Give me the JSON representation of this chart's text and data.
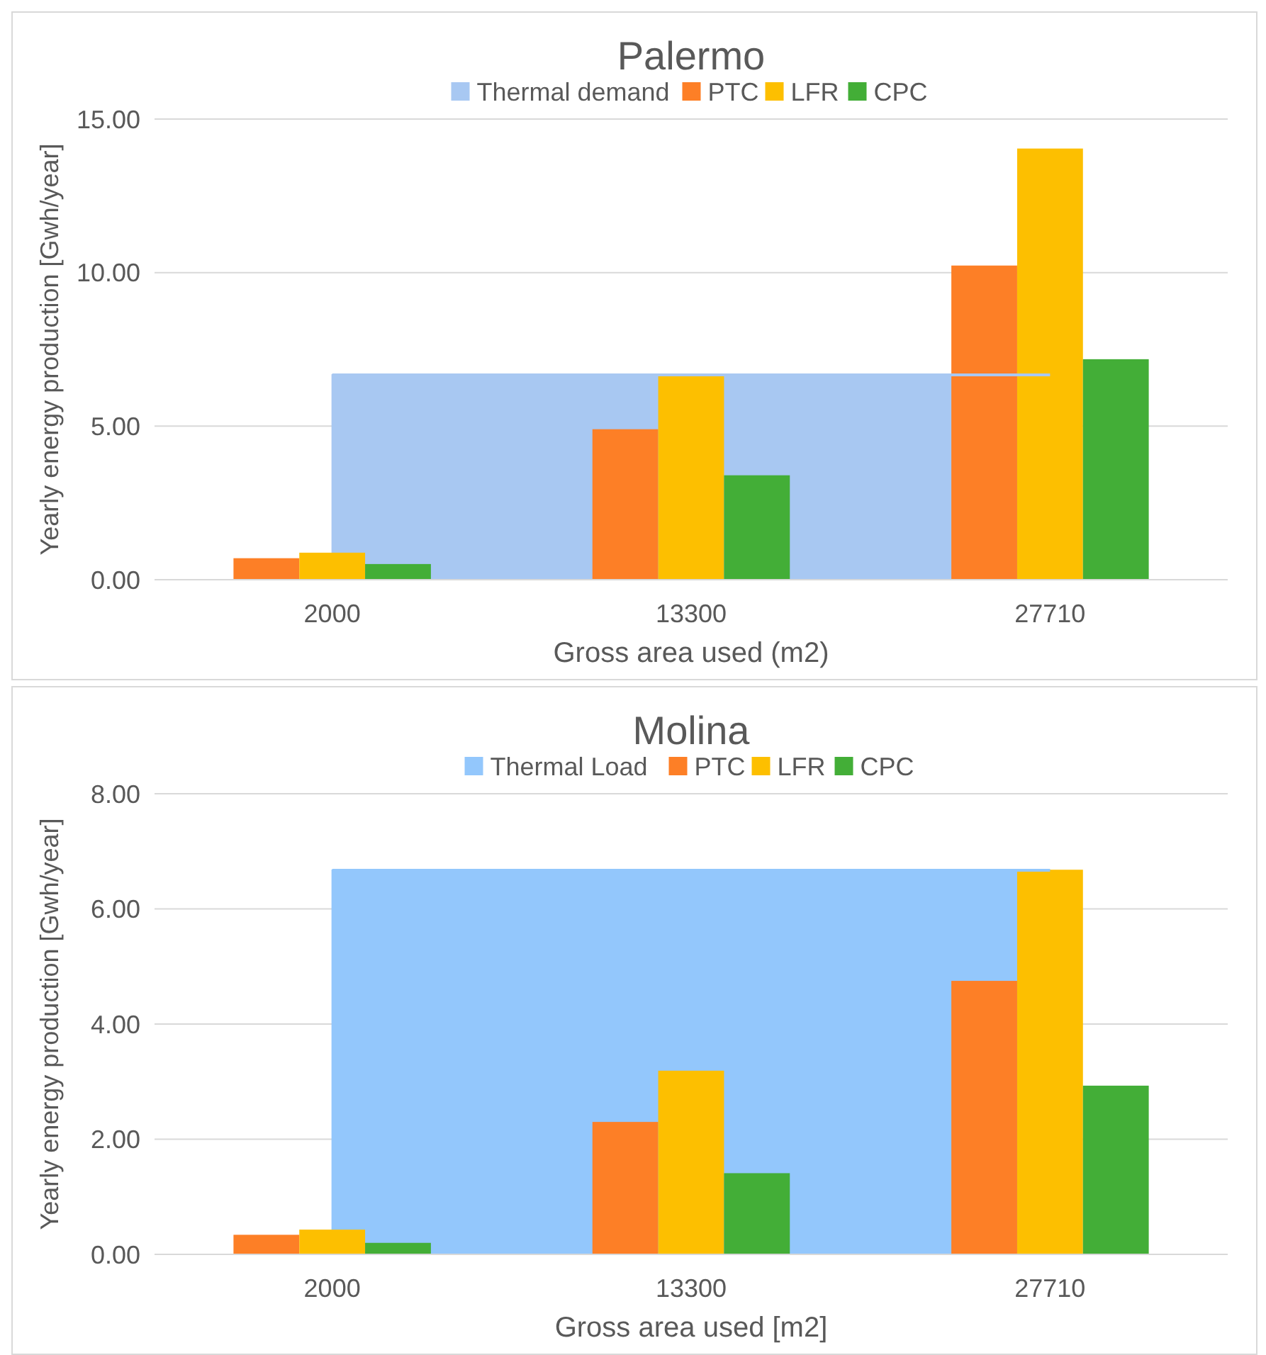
{
  "chart_data": [
    {
      "type": "bar",
      "title": "Palermo",
      "xlabel": "Gross area used (m2)",
      "ylabel": "Yearly energy production [Gwh/year]",
      "categories": [
        "2000",
        "13300",
        "27710"
      ],
      "ylim": [
        0,
        15
      ],
      "yticks": [
        {
          "value": 0,
          "label": "0.00"
        },
        {
          "value": 5,
          "label": "5.00"
        },
        {
          "value": 10,
          "label": "10.00"
        },
        {
          "value": 15,
          "label": "15.00"
        }
      ],
      "grid": "y",
      "legend": "top",
      "series": [
        {
          "name": "Thermal demand",
          "type": "area",
          "color": "#a8c8f2",
          "values": [
            6.67,
            6.67,
            6.67
          ]
        },
        {
          "name": "PTC",
          "color": "#fd7f26",
          "values": [
            0.7,
            4.9,
            10.23
          ]
        },
        {
          "name": "LFR",
          "color": "#fdbf00",
          "values": [
            0.88,
            6.67,
            14.04
          ]
        },
        {
          "name": "CPC",
          "color": "#43ae37",
          "values": [
            0.51,
            3.4,
            7.18
          ]
        }
      ]
    },
    {
      "type": "bar",
      "title": "Molina",
      "xlabel": "Gross area used [m2]",
      "ylabel": "Yearly energy production [Gwh/year]",
      "categories": [
        "2000",
        "13300",
        "27710"
      ],
      "ylim": [
        0,
        8
      ],
      "yticks": [
        {
          "value": 0,
          "label": "0.00"
        },
        {
          "value": 2,
          "label": "2.00"
        },
        {
          "value": 4,
          "label": "4.00"
        },
        {
          "value": 6,
          "label": "6.00"
        },
        {
          "value": 8,
          "label": "8.00"
        }
      ],
      "grid": "y",
      "legend": "top",
      "series": [
        {
          "name": "Thermal Load",
          "type": "area",
          "color": "#93c7fc",
          "values": [
            6.67,
            6.67,
            6.67
          ]
        },
        {
          "name": "PTC",
          "color": "#fd7f26",
          "values": [
            0.34,
            2.3,
            4.75
          ]
        },
        {
          "name": "LFR",
          "color": "#fdbf00",
          "values": [
            0.43,
            3.19,
            6.68
          ]
        },
        {
          "name": "CPC",
          "color": "#43ae37",
          "values": [
            0.2,
            1.41,
            2.93
          ]
        }
      ]
    }
  ]
}
